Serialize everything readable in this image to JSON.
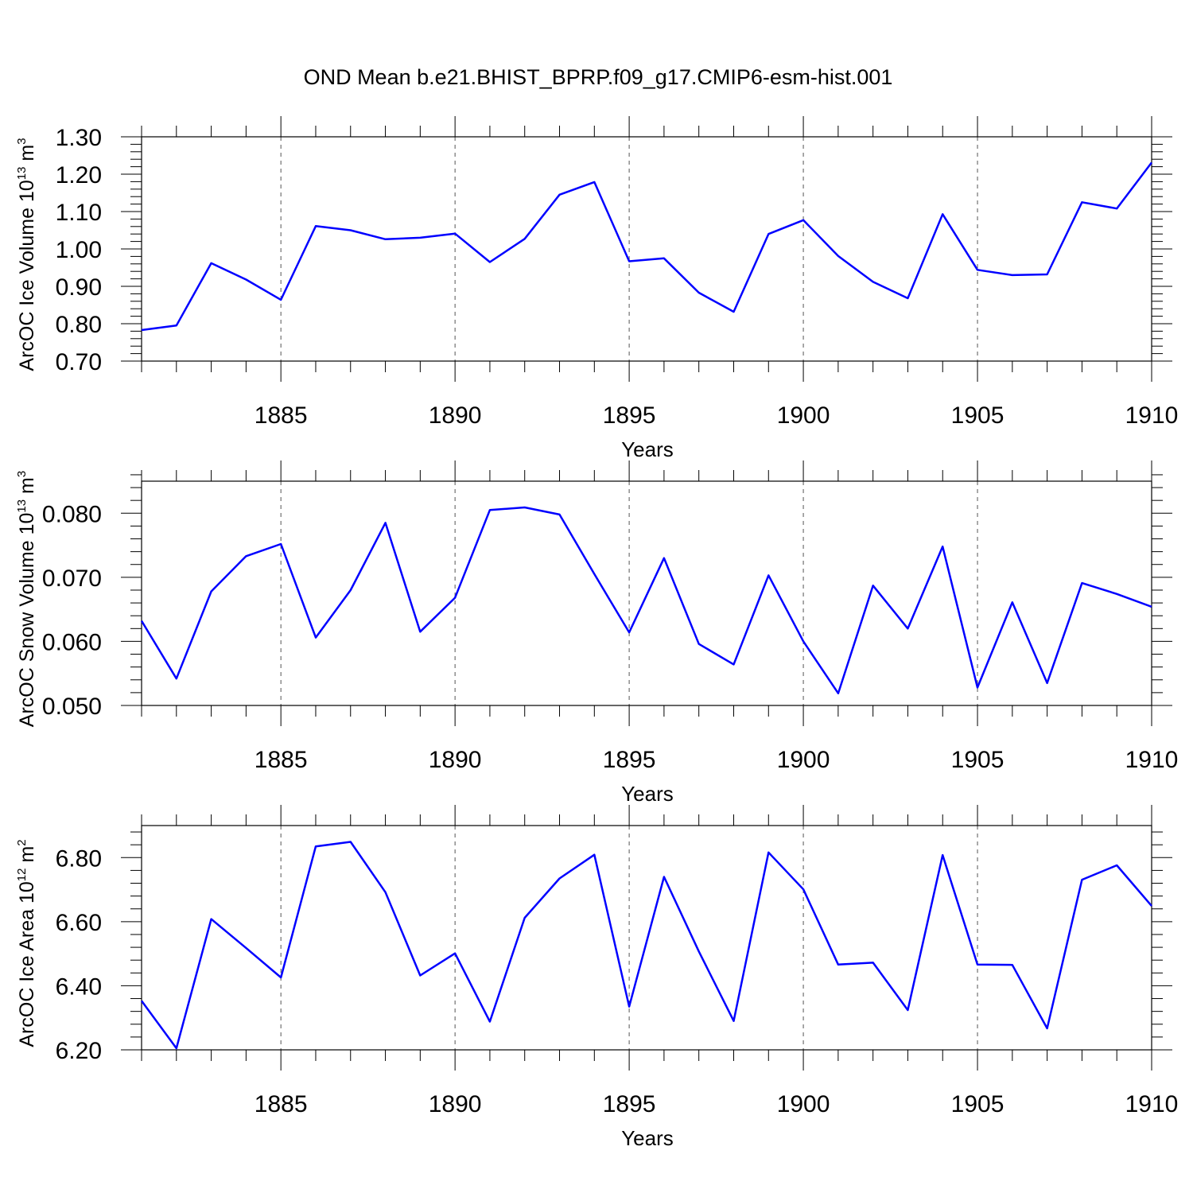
{
  "title": "OND Mean b.e21.BHIST_BPRP.f09_g17.CMIP6-esm-hist.001",
  "colors": {
    "line": "#0000ff",
    "axis": "#000000",
    "grid": "#555555"
  },
  "chart_data": [
    {
      "type": "line",
      "ylabel": {
        "main": "ArcOC Ice Volume 10",
        "exp": "13",
        "unit": " m",
        "unit_exp": "3"
      },
      "xlabel": "Years",
      "xlim": [
        1881,
        1910
      ],
      "ylim": [
        0.7,
        1.3
      ],
      "x_ticks": [
        "1885",
        "1890",
        "1895",
        "1900",
        "1905",
        "1910"
      ],
      "y_ticks": [
        "0.70",
        "0.80",
        "0.90",
        "1.00",
        "1.10",
        "1.20",
        "1.30"
      ],
      "grid": "vertical dashed at major x ticks",
      "x": [
        1881,
        1882,
        1883,
        1884,
        1885,
        1886,
        1887,
        1888,
        1889,
        1890,
        1891,
        1892,
        1893,
        1894,
        1895,
        1896,
        1897,
        1898,
        1899,
        1900,
        1901,
        1902,
        1903,
        1904,
        1905,
        1906,
        1907,
        1908,
        1909,
        1910
      ],
      "series": [
        {
          "values": [
            0.783,
            0.795,
            0.962,
            0.918,
            0.864,
            1.061,
            1.05,
            1.026,
            1.03,
            1.041,
            0.965,
            1.027,
            1.145,
            1.179,
            0.967,
            0.975,
            0.883,
            0.832,
            1.04,
            1.077,
            0.981,
            0.912,
            0.868,
            1.093,
            0.944,
            0.93,
            0.932,
            1.125,
            1.108,
            1.231
          ]
        }
      ]
    },
    {
      "type": "line",
      "ylabel": {
        "main": "ArcOC Snow Volume 10",
        "exp": "13",
        "unit": " m",
        "unit_exp": "3"
      },
      "xlabel": "Years",
      "xlim": [
        1881,
        1910
      ],
      "ylim": [
        0.05,
        0.085
      ],
      "x_ticks": [
        "1885",
        "1890",
        "1895",
        "1900",
        "1905",
        "1910"
      ],
      "y_ticks": [
        "0.050",
        "0.060",
        "0.070",
        "0.080"
      ],
      "grid": "vertical dashed at major x ticks",
      "x": [
        1881,
        1882,
        1883,
        1884,
        1885,
        1886,
        1887,
        1888,
        1889,
        1890,
        1891,
        1892,
        1893,
        1894,
        1895,
        1896,
        1897,
        1898,
        1899,
        1900,
        1901,
        1902,
        1903,
        1904,
        1905,
        1906,
        1907,
        1908,
        1909,
        1910
      ],
      "series": [
        {
          "values": [
            0.0632,
            0.0542,
            0.0678,
            0.0733,
            0.0752,
            0.0606,
            0.068,
            0.0785,
            0.0615,
            0.0668,
            0.0805,
            0.0809,
            0.0798,
            0.0705,
            0.0614,
            0.073,
            0.0596,
            0.0564,
            0.0703,
            0.06,
            0.0519,
            0.0687,
            0.062,
            0.0748,
            0.0528,
            0.0661,
            0.0535,
            0.0691,
            0.0674,
            0.0654
          ]
        }
      ]
    },
    {
      "type": "line",
      "ylabel": {
        "main": "ArcOC Ice Area 10",
        "exp": "12",
        "unit": " m",
        "unit_exp": "2"
      },
      "xlabel": "Years",
      "xlim": [
        1881,
        1910
      ],
      "ylim": [
        6.2,
        6.9
      ],
      "x_ticks": [
        "1885",
        "1890",
        "1895",
        "1900",
        "1905",
        "1910"
      ],
      "y_ticks": [
        "6.20",
        "6.40",
        "6.60",
        "6.80"
      ],
      "grid": "vertical dashed at major x ticks",
      "x": [
        1881,
        1882,
        1883,
        1884,
        1885,
        1886,
        1887,
        1888,
        1889,
        1890,
        1891,
        1892,
        1893,
        1894,
        1895,
        1896,
        1897,
        1898,
        1899,
        1900,
        1901,
        1902,
        1903,
        1904,
        1905,
        1906,
        1907,
        1908,
        1909,
        1910
      ],
      "series": [
        {
          "values": [
            6.353,
            6.205,
            6.608,
            6.518,
            6.426,
            6.835,
            6.849,
            6.692,
            6.432,
            6.501,
            6.288,
            6.612,
            6.735,
            6.809,
            6.335,
            6.74,
            6.507,
            6.29,
            6.816,
            6.701,
            6.466,
            6.472,
            6.324,
            6.808,
            6.466,
            6.465,
            6.267,
            6.731,
            6.776,
            6.649
          ]
        }
      ]
    }
  ]
}
